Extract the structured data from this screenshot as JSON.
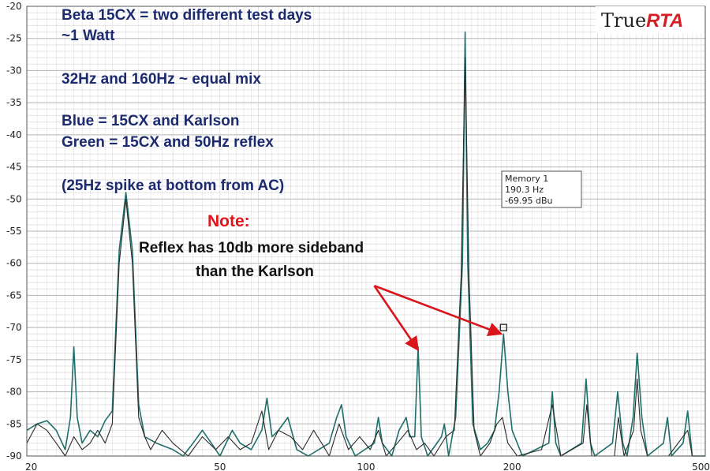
{
  "chart_data": {
    "type": "line",
    "xscale": "log",
    "xlim": [
      20,
      500
    ],
    "ylim": [
      -90,
      -20
    ],
    "grid": true,
    "x_ticks": [
      {
        "value": 20,
        "label": "20"
      },
      {
        "value": 50,
        "label": "50"
      },
      {
        "value": 100,
        "label": "100"
      },
      {
        "value": 200,
        "label": "200"
      },
      {
        "value": 500,
        "label": "500"
      }
    ],
    "y_ticks": [
      {
        "value": -20,
        "label": "-20"
      },
      {
        "value": -25,
        "label": "-25"
      },
      {
        "value": -30,
        "label": "-30"
      },
      {
        "value": -35,
        "label": "-35"
      },
      {
        "value": -40,
        "label": "-40"
      },
      {
        "value": -45,
        "label": "-45"
      },
      {
        "value": -50,
        "label": "-50"
      },
      {
        "value": -55,
        "label": "-55"
      },
      {
        "value": -60,
        "label": "-60"
      },
      {
        "value": -65,
        "label": "-65"
      },
      {
        "value": -70,
        "label": "-70"
      },
      {
        "value": -75,
        "label": "-75"
      },
      {
        "value": -80,
        "label": "-80"
      },
      {
        "value": -85,
        "label": "-85"
      },
      {
        "value": -90,
        "label": "-90"
      }
    ],
    "series": [
      {
        "color": "#1f6f6a",
        "points": [
          [
            20,
            -86
          ],
          [
            21,
            -85
          ],
          [
            22,
            -84.5
          ],
          [
            23,
            -86
          ],
          [
            24,
            -89
          ],
          [
            24.6,
            -84
          ],
          [
            25,
            -73
          ],
          [
            25.4,
            -84
          ],
          [
            26,
            -88
          ],
          [
            27,
            -86
          ],
          [
            28,
            -87
          ],
          [
            29,
            -84.5
          ],
          [
            30,
            -83
          ],
          [
            31,
            -58
          ],
          [
            32,
            -49
          ],
          [
            33,
            -58
          ],
          [
            34,
            -82
          ],
          [
            35,
            -87
          ],
          [
            37,
            -88
          ],
          [
            40,
            -89
          ],
          [
            42,
            -90
          ],
          [
            44,
            -88
          ],
          [
            46,
            -86
          ],
          [
            48,
            -88
          ],
          [
            50,
            -90
          ],
          [
            53,
            -86
          ],
          [
            55,
            -88
          ],
          [
            58,
            -89
          ],
          [
            61,
            -86
          ],
          [
            62.5,
            -81
          ],
          [
            64,
            -87
          ],
          [
            66,
            -86
          ],
          [
            69,
            -84
          ],
          [
            72,
            -89
          ],
          [
            76,
            -90
          ],
          [
            84,
            -88
          ],
          [
            87,
            -84
          ],
          [
            89,
            -82
          ],
          [
            91,
            -87
          ],
          [
            95,
            -90
          ],
          [
            104,
            -88
          ],
          [
            106,
            -84
          ],
          [
            108,
            -88
          ],
          [
            113,
            -90
          ],
          [
            117,
            -86
          ],
          [
            121,
            -84
          ],
          [
            123,
            -87
          ],
          [
            126,
            -87
          ],
          [
            128,
            -73
          ],
          [
            130,
            -87
          ],
          [
            134,
            -90
          ],
          [
            143,
            -87
          ],
          [
            145,
            -85
          ],
          [
            148,
            -90
          ],
          [
            153,
            -84
          ],
          [
            158,
            -60
          ],
          [
            160,
            -24
          ],
          [
            162,
            -60
          ],
          [
            166,
            -85
          ],
          [
            172,
            -89
          ],
          [
            178,
            -88
          ],
          [
            184,
            -86
          ],
          [
            188,
            -80
          ],
          [
            192,
            -71
          ],
          [
            196,
            -80
          ],
          [
            200,
            -86
          ],
          [
            210,
            -90
          ],
          [
            238,
            -88
          ],
          [
            242,
            -80
          ],
          [
            246,
            -88
          ],
          [
            252,
            -90
          ],
          [
            278,
            -88
          ],
          [
            284,
            -78
          ],
          [
            290,
            -88
          ],
          [
            296,
            -90
          ],
          [
            322,
            -88
          ],
          [
            330,
            -80
          ],
          [
            338,
            -88
          ],
          [
            345,
            -90
          ],
          [
            355,
            -84
          ],
          [
            362,
            -74
          ],
          [
            370,
            -84
          ],
          [
            380,
            -90
          ],
          [
            410,
            -88
          ],
          [
            418,
            -84
          ],
          [
            426,
            -90
          ],
          [
            450,
            -88
          ],
          [
            460,
            -83
          ],
          [
            470,
            -90
          ],
          [
            500,
            -90
          ]
        ]
      },
      {
        "color": "#2b2b2b",
        "points": [
          [
            20,
            -88
          ],
          [
            21,
            -85
          ],
          [
            22,
            -86
          ],
          [
            23,
            -88
          ],
          [
            24,
            -90
          ],
          [
            25,
            -87
          ],
          [
            26,
            -89
          ],
          [
            27,
            -88
          ],
          [
            28,
            -86
          ],
          [
            29,
            -88
          ],
          [
            30,
            -85
          ],
          [
            31,
            -60
          ],
          [
            32,
            -50
          ],
          [
            33,
            -60
          ],
          [
            34,
            -84
          ],
          [
            35,
            -87
          ],
          [
            36,
            -89
          ],
          [
            38,
            -86
          ],
          [
            40,
            -88
          ],
          [
            43,
            -90
          ],
          [
            46,
            -87
          ],
          [
            49,
            -89
          ],
          [
            52,
            -87
          ],
          [
            55,
            -89
          ],
          [
            58,
            -88
          ],
          [
            61,
            -83
          ],
          [
            63,
            -89
          ],
          [
            66,
            -86
          ],
          [
            70,
            -87
          ],
          [
            74,
            -89
          ],
          [
            78,
            -86
          ],
          [
            81,
            -88
          ],
          [
            84,
            -90
          ],
          [
            88,
            -85
          ],
          [
            92,
            -89
          ],
          [
            97,
            -87
          ],
          [
            102,
            -89
          ],
          [
            106,
            -86
          ],
          [
            110,
            -90
          ],
          [
            116,
            -88
          ],
          [
            122,
            -86
          ],
          [
            127,
            -89
          ],
          [
            132,
            -88
          ],
          [
            138,
            -90
          ],
          [
            146,
            -87
          ],
          [
            152,
            -86
          ],
          [
            157,
            -62
          ],
          [
            160,
            -28
          ],
          [
            163,
            -62
          ],
          [
            167,
            -86
          ],
          [
            172,
            -90
          ],
          [
            180,
            -88
          ],
          [
            186,
            -85
          ],
          [
            191,
            -84
          ],
          [
            196,
            -88
          ],
          [
            205,
            -90
          ],
          [
            230,
            -89
          ],
          [
            242,
            -82
          ],
          [
            252,
            -90
          ],
          [
            280,
            -88
          ],
          [
            285,
            -82
          ],
          [
            292,
            -90
          ],
          [
            325,
            -90
          ],
          [
            331,
            -84
          ],
          [
            340,
            -90
          ],
          [
            356,
            -86
          ],
          [
            362,
            -78
          ],
          [
            368,
            -86
          ],
          [
            380,
            -90
          ],
          [
            420,
            -90
          ],
          [
            460,
            -86
          ],
          [
            470,
            -90
          ],
          [
            500,
            -90
          ]
        ]
      }
    ],
    "annotations": {
      "lines": [
        "Beta 15CX = two different test days",
        "~1 Watt",
        "32Hz and 160Hz ~ equal mix",
        "Blue = 15CX and Karlson",
        "Green = 15CX and 50Hz reflex",
        "(25Hz spike at bottom from AC)"
      ],
      "note_title": "Note:",
      "note_lines": [
        "Reflex has 10db more sideband",
        "than the Karlson"
      ]
    },
    "memory_box": {
      "title": "Memory 1",
      "freq": "190.3 Hz",
      "level": "-69.95 dBu",
      "marker": {
        "x": 192,
        "y": -70
      }
    },
    "arrows": [
      {
        "from": {
          "x": 104,
          "y": -63.5
        },
        "to": {
          "x": 128,
          "y": -73.5
        }
      },
      {
        "from": {
          "x": 104,
          "y": -63.5
        },
        "to": {
          "x": 190,
          "y": -71
        }
      }
    ]
  },
  "logo": {
    "part1": "True",
    "part2": "RTA"
  },
  "colors": {
    "arrow": "#d9141b",
    "grid": "#c9c9c9",
    "frame": "#555555"
  }
}
